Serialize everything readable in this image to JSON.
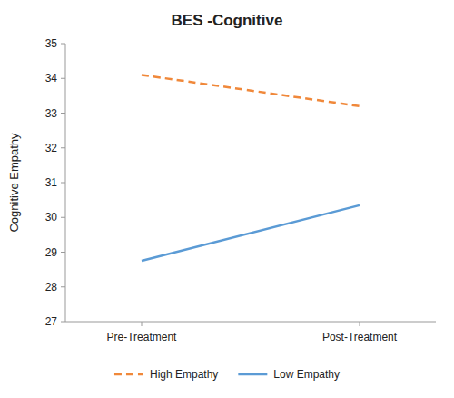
{
  "chart_data": {
    "type": "line",
    "title": "BES -Cognitive",
    "ylabel": "Cognitive Empathy",
    "categories": [
      "Pre-Treatment",
      "Post-Treatment"
    ],
    "series": [
      {
        "name": "High Empathy",
        "color": "#F0883A",
        "line_style": "dashed",
        "values": [
          34.1,
          33.2
        ]
      },
      {
        "name": "Low Empathy",
        "color": "#5B9BD5",
        "line_style": "solid",
        "values": [
          28.75,
          30.35
        ]
      }
    ],
    "ylim": [
      27,
      35
    ],
    "yticks": [
      27,
      28,
      29,
      30,
      31,
      32,
      33,
      34,
      35
    ],
    "grid": false,
    "legend": "bottom"
  }
}
